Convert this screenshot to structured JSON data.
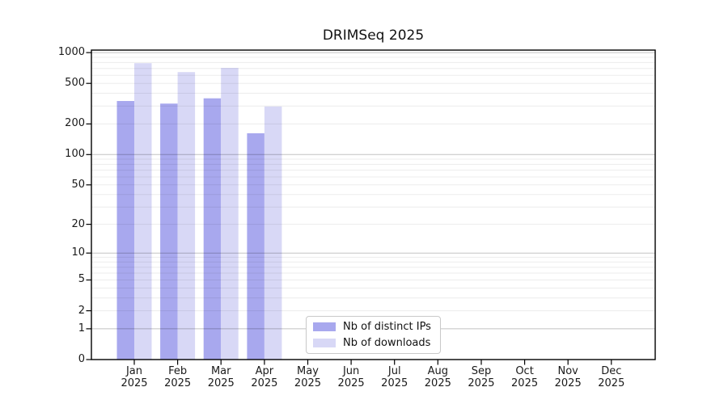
{
  "title": "DRIMSeq 2025",
  "chart_data": {
    "type": "bar",
    "title": "DRIMSeq 2025",
    "scale": "log10(1+x)",
    "categories": [
      "Jan",
      "Feb",
      "Mar",
      "Apr",
      "May",
      "Jun",
      "Jul",
      "Aug",
      "Sep",
      "Oct",
      "Nov",
      "Dec"
    ],
    "year": "2025",
    "series": [
      {
        "name": "Nb of distinct IPs",
        "color": "#a8a8ee",
        "values": [
          336,
          317,
          357,
          162,
          0,
          0,
          0,
          0,
          0,
          0,
          0,
          0
        ]
      },
      {
        "name": "Nb of downloads",
        "color": "#d8d8f6",
        "values": [
          788,
          645,
          710,
          297,
          0,
          0,
          0,
          0,
          0,
          0,
          0,
          0
        ]
      }
    ],
    "y_ticks": [
      0,
      1,
      2,
      5,
      10,
      20,
      50,
      100,
      200,
      500,
      1000
    ],
    "ylim": [
      0,
      1070
    ],
    "xlabel": "",
    "ylabel": "",
    "grid": "on",
    "grid_minor_values": [
      2,
      3,
      4,
      5,
      6,
      7,
      8,
      9,
      20,
      30,
      40,
      50,
      60,
      70,
      80,
      90,
      200,
      300,
      400,
      500,
      600,
      700,
      800,
      900
    ],
    "grid_major_values": [
      1,
      10,
      100,
      1000
    ],
    "legend_position": "bottom-center",
    "axis_color": "#000000",
    "background_color": "#ffffff"
  }
}
